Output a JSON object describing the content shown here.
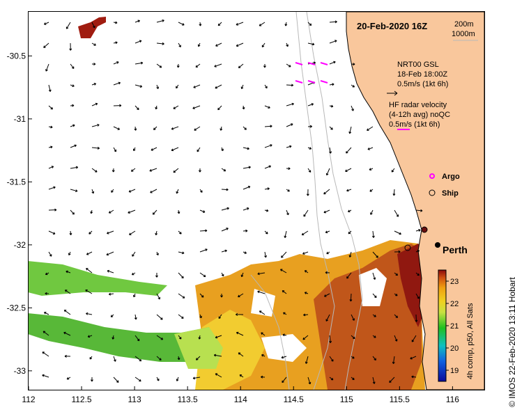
{
  "map": {
    "date_title": "20-Feb-2020 16Z",
    "isobath_legend": [
      "200m",
      "1000m"
    ],
    "x_ticks": [
      "112",
      "112.5",
      "113",
      "113.5",
      "114",
      "114.5",
      "115",
      "115.5",
      "116"
    ],
    "y_ticks": [
      "-30.5",
      "-31",
      "-31.5",
      "-32",
      "-32.5",
      "-33"
    ],
    "lon_range": [
      112,
      116.3
    ],
    "lat_range": [
      -30.15,
      -33.15
    ],
    "city_label": "Perth",
    "model_legend": {
      "title": "NRT00 GSL",
      "time": "18-Feb 18:00Z",
      "scale": "0.5m/s (1kt 6h)"
    },
    "radar_legend": {
      "line1": "HF radar velocity",
      "line2": "(4-12h avg) noQC",
      "scale": "0.5m/s (1kt 6h)"
    },
    "markers": {
      "argo": "Argo",
      "ship": "Ship"
    },
    "colorbar": {
      "ticks": [
        "23",
        "22",
        "21",
        "20",
        "19"
      ],
      "label": "4h comp, p50, All Sats",
      "range": [
        18.5,
        23.5
      ]
    },
    "credit": "© IMOS 22-Feb-2020 13:11 Hobart",
    "colors": {
      "land": "#f9c79c",
      "argo": "#ff00ff",
      "radar_arrows": "#ff00ff",
      "isobath": "#b8b8b8"
    }
  }
}
